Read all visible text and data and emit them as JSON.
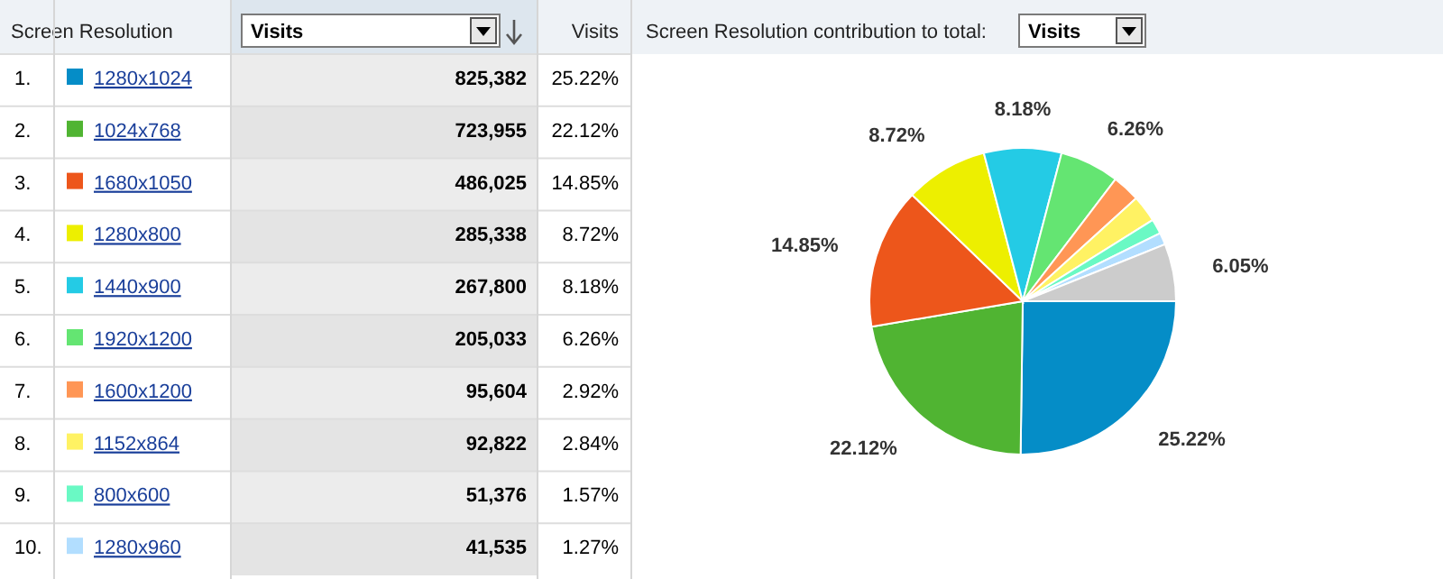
{
  "chart_data": {
    "type": "pie",
    "title": "Screen Resolution contribution to total:",
    "legend_title": "Screen Resolution",
    "ylabel": "Visits",
    "annotations": [
      "Visits",
      "Visits",
      "1.",
      "825,382",
      "2.",
      "723,955",
      "3.",
      "486,025",
      "4.",
      "285,338",
      "5.",
      "267,800",
      "6.",
      "205,033",
      "7.",
      "95,604",
      "8.",
      "92,822",
      "9.",
      "51,376",
      "10.",
      "41,535"
    ],
    "categories": [
      "1280x1024",
      "1024x768",
      "1680x1050",
      "1280x800",
      "1440x900",
      "1920x1200",
      "1600x1200",
      "1152x864",
      "800x600",
      "1280x960",
      null
    ],
    "values": [
      25.22,
      22.12,
      14.85,
      8.72,
      8.18,
      6.26,
      2.92,
      2.84,
      1.57,
      1.27,
      6.05
    ],
    "value_labels": [
      "25.22%",
      "22.12%",
      "14.85%",
      "8.72%",
      "8.18%",
      "6.26%",
      "2.92%",
      "2.84%",
      "1.57%",
      "1.27%",
      "6.05%"
    ],
    "colors": [
      "#058dc7",
      "#50b432",
      "#ed561b",
      "#edef00",
      "#24cbe5",
      "#64e572",
      "#ff9655",
      "#fff263",
      "#6af9c4",
      "#b2deff",
      "#cccccc"
    ],
    "legend": "left"
  }
}
